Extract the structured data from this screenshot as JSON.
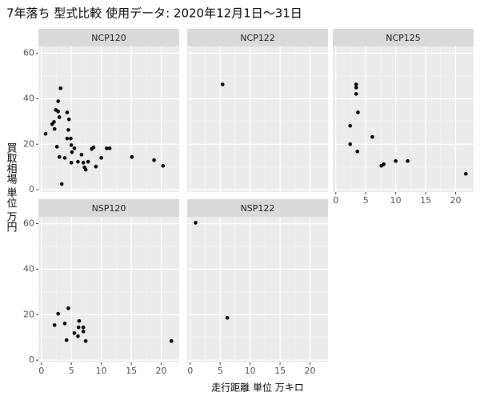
{
  "chart_data": {
    "type": "scatter",
    "title": "7年落ち 型式比較 使用データ: 2020年12月1日～31日",
    "xlabel": "走行距離 単位 万キロ",
    "ylabel": "買取相場 単位 万円",
    "xlim": [
      -0.5,
      23
    ],
    "xticks": [
      0,
      5,
      10,
      15,
      20
    ],
    "ylim": [
      -1,
      63
    ],
    "yticks": [
      0,
      20,
      40,
      60
    ],
    "grid": true,
    "color": "#000000",
    "facets": [
      {
        "name": "NCP120",
        "x": [
          0.7,
          1.8,
          2.1,
          2.2,
          2.4,
          2.8,
          2.8,
          3.2,
          3.0,
          2.6,
          3.0,
          3.4,
          3.9,
          4.3,
          4.5,
          4.6,
          4.3,
          4.9,
          5.0,
          5.1,
          5.0,
          5.5,
          6.1,
          6.7,
          7.0,
          7.2,
          7.4,
          7.8,
          8.4,
          8.7,
          9.1,
          10.0,
          10.9,
          11.4,
          15.1,
          18.8,
          20.3
        ],
        "y": [
          24.6,
          28.8,
          29.8,
          26.7,
          35.1,
          34.4,
          38.9,
          44.6,
          31.9,
          18.9,
          14.4,
          2.5,
          14.0,
          34.0,
          26.3,
          30.9,
          22.5,
          22.5,
          19.6,
          16.5,
          11.9,
          18.2,
          12.3,
          15.4,
          11.9,
          9.8,
          8.8,
          12.3,
          17.9,
          18.6,
          10.2,
          14.0,
          18.2,
          18.2,
          14.4,
          13.0,
          10.5
        ]
      },
      {
        "name": "NCP122",
        "x": [
          5.4
        ],
        "y": [
          46.3
        ]
      },
      {
        "name": "NCP125",
        "x": [
          3.4,
          3.4,
          3.4,
          3.7,
          2.4,
          2.4,
          3.6,
          6.1,
          7.6,
          8.0,
          10.0,
          12.0,
          21.7
        ],
        "y": [
          46.3,
          44.9,
          42.1,
          34.0,
          28.1,
          20.0,
          16.8,
          23.2,
          10.5,
          11.2,
          12.6,
          12.6,
          7.0
        ]
      },
      {
        "name": "NSP120",
        "x": [
          2.2,
          2.8,
          3.9,
          4.2,
          4.5,
          5.5,
          6.1,
          6.2,
          6.3,
          7.0,
          7.0,
          7.4,
          21.7
        ],
        "y": [
          15.4,
          20.4,
          16.1,
          8.8,
          22.8,
          11.9,
          10.5,
          14.4,
          17.2,
          14.4,
          12.6,
          8.4,
          8.4
        ]
      },
      {
        "name": "NSP122",
        "x": [
          0.9,
          6.2
        ],
        "y": [
          60.4,
          18.6
        ]
      }
    ]
  }
}
